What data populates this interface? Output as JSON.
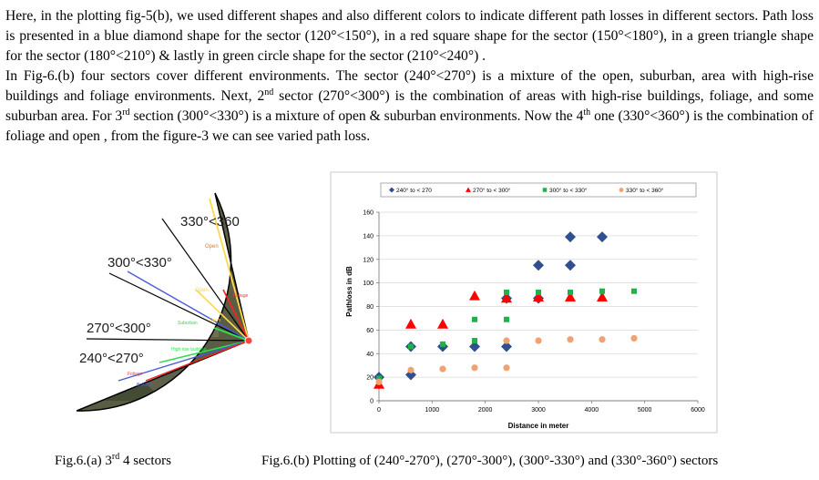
{
  "paragraph": {
    "p1": "Here, in the plotting fig-5(b), we used different shapes and also different colors to indicate different path losses in different sectors. Path loss is presented in a blue diamond shape for the sector (120°<150°), in a red square shape for the sector (150°<180°), in a green triangle shape for the sector (180°<210°) & lastly in green circle shape for the sector (210°<240°) .",
    "p2a": "In Fig-6.(b) four sectors cover different environments. The sector (240°<270°) is a mixture of the open, suburban, area with high-rise buildings and foliage environments. Next, 2",
    "p2_sup1": "nd",
    "p2b": " sector (270°<300°) is the combination of areas with high-rise buildings, foliage, and some suburban area. For 3",
    "p2_sup2": "rd",
    "p2c": " section (300°<330°) is a mixture of open & suburban environments. Now the 4",
    "p2_sup3": "th",
    "p2d": " one (330°<360°) is the combination of foliage and open , from the figure-3 we can see varied path loss."
  },
  "figure_a": {
    "sector_labels": [
      "330°<360",
      "300°<330°",
      "270°<300°",
      "240°<270°"
    ],
    "small_labels": [
      "Open",
      "Open",
      "Foliage",
      "Suburban",
      "Open",
      "High rise building",
      "Foliage",
      "Building"
    ]
  },
  "captions": {
    "a_prefix": "Fig.6.(a) 3",
    "a_sup": "rd",
    "a_suffix": " 4 sectors",
    "b": "Fig.6.(b) Plotting of (240°-270°), (270°-300°), (300°-330°) and (330°-360°) sectors"
  },
  "chart_data": {
    "type": "scatter",
    "title": "",
    "xlabel": "Distance in meter",
    "ylabel": "Pathloss in dB",
    "xlim": [
      0,
      6000
    ],
    "ylim": [
      0,
      160
    ],
    "xticks": [
      0,
      1000,
      2000,
      3000,
      4000,
      5000,
      6000
    ],
    "yticks": [
      0,
      20,
      40,
      60,
      80,
      100,
      120,
      140,
      160
    ],
    "grid": true,
    "legend_position": "top",
    "series": [
      {
        "name": "240° to < 270",
        "marker": "diamond",
        "color": "#2f4f8f",
        "points": [
          [
            0,
            20
          ],
          [
            600,
            22
          ],
          [
            600,
            46
          ],
          [
            1200,
            46
          ],
          [
            1800,
            46
          ],
          [
            2400,
            46
          ],
          [
            2400,
            87
          ],
          [
            3000,
            87
          ],
          [
            3000,
            115
          ],
          [
            3600,
            115
          ],
          [
            3600,
            139
          ],
          [
            4200,
            139
          ]
        ]
      },
      {
        "name": "270° to < 300°",
        "marker": "triangle",
        "color": "#ff0000",
        "points": [
          [
            0,
            14
          ],
          [
            600,
            65
          ],
          [
            1200,
            65
          ],
          [
            1800,
            89
          ],
          [
            2400,
            87
          ],
          [
            3000,
            88
          ],
          [
            3600,
            88
          ],
          [
            4200,
            88
          ]
        ]
      },
      {
        "name": "300° to < 330°",
        "marker": "square",
        "color": "#1db34a",
        "points": [
          [
            0,
            19
          ],
          [
            600,
            46
          ],
          [
            1200,
            48
          ],
          [
            1800,
            51
          ],
          [
            1800,
            69
          ],
          [
            2400,
            69
          ],
          [
            2400,
            92
          ],
          [
            3000,
            92
          ],
          [
            3600,
            92
          ],
          [
            4200,
            93
          ],
          [
            4800,
            93
          ]
        ]
      },
      {
        "name": "330° to < 360°",
        "marker": "circle",
        "color": "#f2a170",
        "points": [
          [
            0,
            16
          ],
          [
            600,
            26
          ],
          [
            1200,
            27
          ],
          [
            1800,
            28
          ],
          [
            2400,
            28
          ],
          [
            2400,
            51
          ],
          [
            3000,
            51
          ],
          [
            3600,
            52
          ],
          [
            4200,
            52
          ],
          [
            4800,
            53
          ]
        ]
      }
    ]
  }
}
